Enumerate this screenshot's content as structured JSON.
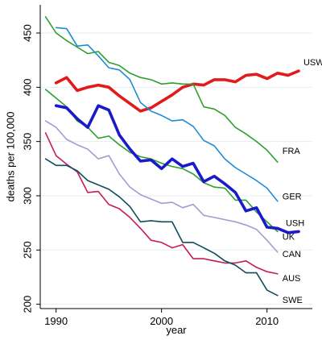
{
  "chart_data": {
    "type": "line",
    "title": "",
    "xlabel": "year",
    "ylabel": "deaths per 100,000",
    "xlim": [
      1988.5,
      2014.3
    ],
    "ylim": [
      196,
      476
    ],
    "x_ticks": [
      1990,
      2000,
      2010
    ],
    "y_ticks": [
      200,
      250,
      300,
      350,
      400,
      450
    ],
    "grid": "horizontal",
    "legend": "none",
    "series": [
      {
        "name": "USW",
        "color": "#e31a1c",
        "emphasis": true,
        "x": [
          1990,
          1991,
          1992,
          1993,
          1994,
          1995,
          1996,
          1997,
          1998,
          1999,
          2000,
          2001,
          2002,
          2003,
          2004,
          2005,
          2006,
          2007,
          2008,
          2009,
          2010,
          2011,
          2012,
          2013
        ],
        "values": [
          404,
          409,
          397,
          400,
          402,
          400,
          392,
          385,
          378,
          381,
          387,
          393,
          400,
          403,
          402,
          407,
          407,
          405,
          411,
          412,
          408,
          413,
          411,
          415
        ]
      },
      {
        "name": "FRA",
        "color": "#2ca02c",
        "emphasis": false,
        "x": [
          1989,
          1990,
          1991,
          1992,
          1993,
          1994,
          1995,
          1996,
          1997,
          1998,
          1999,
          2000,
          2001,
          2002,
          2003,
          2004,
          2005,
          2006,
          2007,
          2008,
          2009,
          2010,
          2011
        ],
        "values": [
          465,
          450,
          443,
          437,
          431,
          433,
          423,
          420,
          413,
          409,
          407,
          403,
          404,
          403,
          403,
          382,
          380,
          374,
          363,
          357,
          350,
          342,
          331
        ]
      },
      {
        "name": "GER",
        "color": "#1f8bd6",
        "emphasis": false,
        "x": [
          1990,
          1991,
          1992,
          1993,
          1994,
          1995,
          1996,
          1997,
          1998,
          1999,
          2000,
          2001,
          2002,
          2003,
          2004,
          2005,
          2006,
          2007,
          2008,
          2009,
          2010,
          2011
        ],
        "values": [
          455,
          454,
          438,
          439,
          429,
          418,
          416,
          407,
          386,
          378,
          374,
          369,
          370,
          364,
          351,
          346,
          334,
          326,
          320,
          314,
          307,
          295
        ]
      },
      {
        "name": "UK",
        "color": "#2ca02c",
        "emphasis": false,
        "x": [
          1989,
          1990,
          1991,
          1992,
          1993,
          1994,
          1995,
          1996,
          1997,
          1998,
          1999,
          2000,
          2001,
          2002,
          2003,
          2004,
          2005,
          2006,
          2007,
          2008,
          2009,
          2010,
          2011
        ],
        "values": [
          398,
          390,
          382,
          369,
          363,
          353,
          355,
          347,
          340,
          336,
          334,
          330,
          327,
          325,
          320,
          312,
          308,
          307,
          296,
          296,
          285,
          276,
          267
        ]
      },
      {
        "name": "USH",
        "color": "#1a1acc",
        "emphasis": true,
        "x": [
          1990,
          1991,
          1992,
          1993,
          1994,
          1995,
          1996,
          1997,
          1998,
          1999,
          2000,
          2001,
          2002,
          2003,
          2004,
          2005,
          2006,
          2007,
          2008,
          2009,
          2010,
          2011,
          2012,
          2013
        ],
        "values": [
          383,
          381,
          371,
          363,
          383,
          379,
          356,
          343,
          332,
          333,
          325,
          334,
          327,
          330,
          313,
          318,
          311,
          303,
          286,
          289,
          271,
          270,
          266,
          267
        ]
      },
      {
        "name": "CAN",
        "color": "#a89ad0",
        "emphasis": false,
        "x": [
          1989,
          1990,
          1991,
          1992,
          1993,
          1994,
          1995,
          1996,
          1997,
          1998,
          1999,
          2000,
          2001,
          2002,
          2003,
          2004,
          2005,
          2006,
          2007,
          2008,
          2009,
          2010,
          2011
        ],
        "values": [
          369,
          363,
          352,
          347,
          343,
          334,
          337,
          320,
          308,
          301,
          297,
          293,
          294,
          289,
          292,
          282,
          280,
          278,
          276,
          273,
          269,
          259,
          248
        ]
      },
      {
        "name": "AUS",
        "color": "#c51b5a",
        "emphasis": false,
        "x": [
          1989,
          1990,
          1991,
          1992,
          1993,
          1994,
          1995,
          1996,
          1997,
          1998,
          1999,
          2000,
          2001,
          2002,
          2003,
          2004,
          2005,
          2006,
          2007,
          2008,
          2009,
          2010,
          2011
        ],
        "values": [
          358,
          337,
          329,
          322,
          303,
          304,
          292,
          288,
          280,
          270,
          259,
          257,
          252,
          255,
          242,
          242,
          240,
          238,
          238,
          240,
          234,
          230,
          228
        ]
      },
      {
        "name": "SWE",
        "color": "#0e4d5c",
        "emphasis": false,
        "x": [
          1989,
          1990,
          1991,
          1992,
          1993,
          1994,
          1995,
          1996,
          1997,
          1998,
          1999,
          2000,
          2001,
          2002,
          2003,
          2004,
          2005,
          2006,
          2007,
          2008,
          2009,
          2010,
          2011
        ],
        "values": [
          334,
          328,
          328,
          323,
          314,
          310,
          306,
          299,
          290,
          276,
          277,
          276,
          276,
          257,
          257,
          252,
          247,
          240,
          236,
          229,
          229,
          213,
          208
        ]
      }
    ]
  }
}
